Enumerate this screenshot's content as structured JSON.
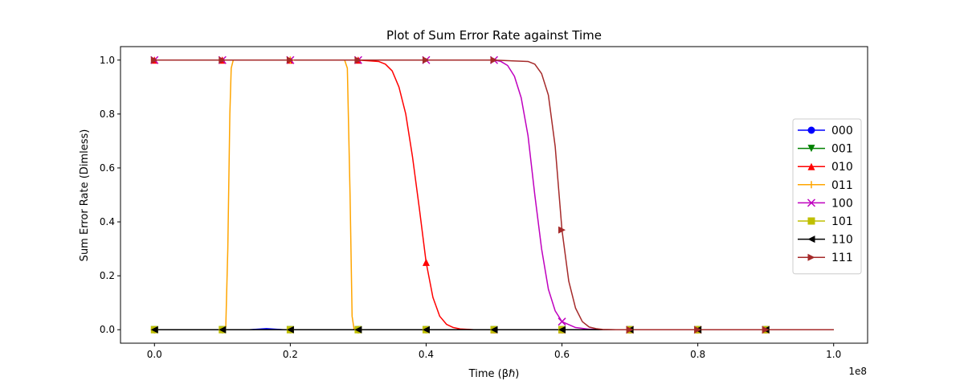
{
  "chart_data": {
    "type": "line",
    "title": "Plot of Sum Error Rate against Time",
    "xlabel": "Time (βℏ)",
    "ylabel": "Sum Error Rate (Dimless)",
    "x_offset_label": "1e8",
    "xlim": [
      -0.05,
      1.05
    ],
    "ylim": [
      -0.05,
      1.05
    ],
    "xticks": [
      0.0,
      0.2,
      0.4,
      0.6,
      0.8,
      1.0
    ],
    "xtick_labels": [
      "0.0",
      "0.2",
      "0.4",
      "0.6",
      "0.8",
      "1.0"
    ],
    "yticks": [
      0.0,
      0.2,
      0.4,
      0.6,
      0.8,
      1.0
    ],
    "ytick_labels": [
      "0.0",
      "0.2",
      "0.4",
      "0.6",
      "0.8",
      "1.0"
    ],
    "grid": false,
    "legend_position": "center-right",
    "marker_x": [
      0.0,
      0.1,
      0.2,
      0.3,
      0.4,
      0.5,
      0.6,
      0.7,
      0.8,
      0.9
    ],
    "series": [
      {
        "name": "000",
        "color": "#0000ff",
        "marker": "circle",
        "x": [
          0.0,
          0.1,
          0.14,
          0.165,
          0.19,
          0.2,
          0.3,
          0.4,
          0.5,
          0.6,
          0.7,
          0.8,
          0.9,
          1.0
        ],
        "y": [
          0.0,
          0.0,
          0.0,
          0.004,
          0.0,
          0.0,
          0.0,
          0.0,
          0.0,
          0.0,
          0.0,
          0.0,
          0.0,
          0.0
        ]
      },
      {
        "name": "001",
        "color": "#008000",
        "marker": "triangle-down",
        "x": [
          0.0,
          0.1,
          0.2,
          0.3,
          0.4,
          0.5,
          0.6,
          0.7,
          0.8,
          0.9,
          1.0
        ],
        "y": [
          0.0,
          0.0,
          0.0,
          0.0,
          0.0,
          0.0,
          0.0,
          0.0,
          0.0,
          0.0,
          0.0
        ]
      },
      {
        "name": "010",
        "color": "#ff0000",
        "marker": "triangle-up",
        "x": [
          0.0,
          0.1,
          0.2,
          0.3,
          0.33,
          0.34,
          0.35,
          0.36,
          0.37,
          0.38,
          0.39,
          0.4,
          0.41,
          0.42,
          0.43,
          0.44,
          0.45,
          0.47,
          0.5,
          0.6,
          0.7,
          0.8,
          0.9,
          1.0
        ],
        "y": [
          1.0,
          1.0,
          1.0,
          1.0,
          0.995,
          0.985,
          0.96,
          0.9,
          0.8,
          0.64,
          0.45,
          0.25,
          0.12,
          0.05,
          0.02,
          0.008,
          0.003,
          0.0,
          0.0,
          0.0,
          0.0,
          0.0,
          0.0,
          0.0
        ]
      },
      {
        "name": "011",
        "color": "#ffa500",
        "marker": "plus",
        "x": [
          0.0,
          0.1,
          0.105,
          0.108,
          0.111,
          0.113,
          0.116,
          0.2,
          0.28,
          0.284,
          0.288,
          0.291,
          0.294,
          0.3,
          0.4,
          0.5,
          0.6,
          0.7,
          0.8,
          0.9,
          1.0
        ],
        "y": [
          0.0,
          0.0,
          0.01,
          0.3,
          0.8,
          0.97,
          1.0,
          1.0,
          1.0,
          0.97,
          0.5,
          0.05,
          0.0,
          0.0,
          0.0,
          0.0,
          0.0,
          0.0,
          0.0,
          0.0,
          0.0
        ]
      },
      {
        "name": "100",
        "color": "#bf00bf",
        "marker": "x",
        "x": [
          0.0,
          0.1,
          0.2,
          0.3,
          0.4,
          0.5,
          0.51,
          0.52,
          0.53,
          0.54,
          0.55,
          0.56,
          0.57,
          0.58,
          0.59,
          0.6,
          0.62,
          0.64,
          0.66,
          0.7,
          0.8,
          0.9,
          1.0
        ],
        "y": [
          1.0,
          1.0,
          1.0,
          1.0,
          1.0,
          1.0,
          0.995,
          0.98,
          0.94,
          0.86,
          0.72,
          0.5,
          0.3,
          0.15,
          0.07,
          0.03,
          0.008,
          0.002,
          0.0,
          0.0,
          0.0,
          0.0,
          0.0
        ]
      },
      {
        "name": "101",
        "color": "#bfbf00",
        "marker": "square",
        "x": [
          0.0,
          0.1,
          0.2,
          0.3,
          0.4,
          0.5,
          0.6,
          0.7,
          0.8,
          0.9,
          1.0
        ],
        "y": [
          0.0,
          0.0,
          0.0,
          0.0,
          0.0,
          0.0,
          0.0,
          0.0,
          0.0,
          0.0,
          0.0
        ]
      },
      {
        "name": "110",
        "color": "#000000",
        "marker": "triangle-left",
        "x": [
          0.0,
          0.1,
          0.2,
          0.3,
          0.4,
          0.5,
          0.6,
          0.7,
          0.8,
          0.9,
          1.0
        ],
        "y": [
          0.0,
          0.0,
          0.0,
          0.0,
          0.0,
          0.0,
          0.0,
          0.0,
          0.0,
          0.0,
          0.0
        ]
      },
      {
        "name": "111",
        "color": "#a52a2a",
        "marker": "triangle-right",
        "x": [
          0.0,
          0.1,
          0.2,
          0.3,
          0.4,
          0.5,
          0.55,
          0.56,
          0.57,
          0.58,
          0.59,
          0.6,
          0.61,
          0.62,
          0.63,
          0.64,
          0.65,
          0.66,
          0.68,
          0.7,
          0.8,
          0.9,
          1.0
        ],
        "y": [
          1.0,
          1.0,
          1.0,
          1.0,
          1.0,
          1.0,
          0.995,
          0.985,
          0.95,
          0.87,
          0.68,
          0.37,
          0.18,
          0.08,
          0.03,
          0.01,
          0.004,
          0.001,
          0.0,
          0.0,
          0.0,
          0.0,
          0.0
        ]
      }
    ]
  }
}
